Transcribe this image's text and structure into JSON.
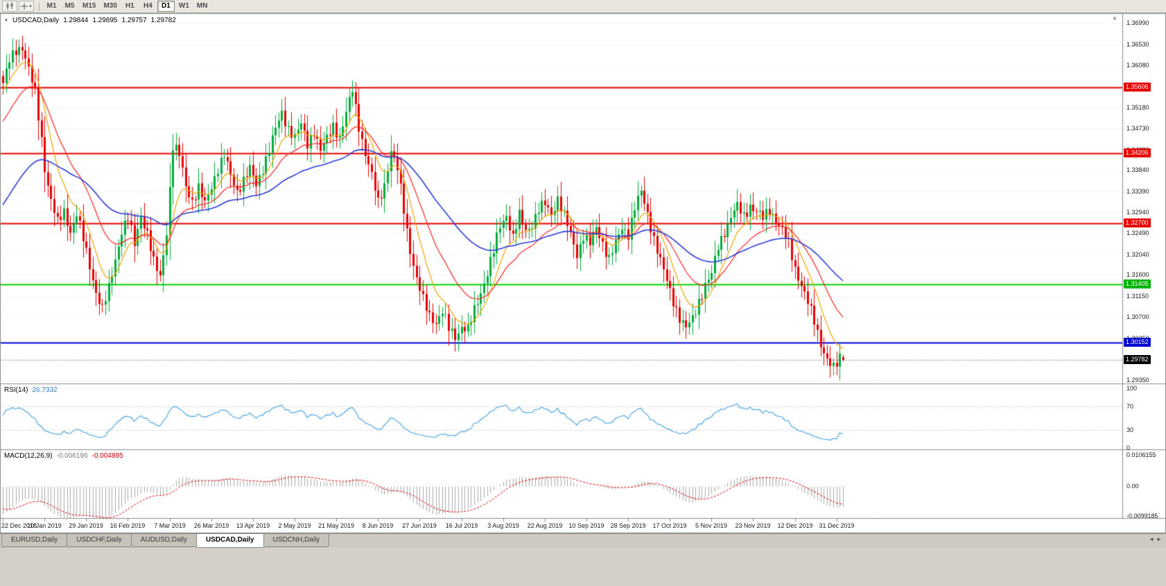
{
  "toolbar": {
    "timeframes": [
      "M1",
      "M5",
      "M15",
      "M30",
      "H1",
      "H4",
      "D1",
      "W1",
      "MN"
    ],
    "active_timeframe": "D1"
  },
  "chart": {
    "title": {
      "symbol_period": "USDCAD,Daily",
      "open": "1.29844",
      "high": "1.29895",
      "low": "1.29757",
      "close": "1.29782"
    },
    "price_axis": {
      "ticks": [
        "1.36990",
        "1.36530",
        "1.36080",
        "1.35630",
        "1.35180",
        "1.34730",
        "1.34280",
        "1.33840",
        "1.33390",
        "1.32940",
        "1.32490",
        "1.32040",
        "1.31600",
        "1.31150",
        "1.30700",
        "1.30250",
        "1.29800",
        "1.29350"
      ]
    },
    "badges": [
      {
        "value": "1.35606",
        "bg": "#e60000",
        "fg": "#ffffff",
        "kind": "level"
      },
      {
        "value": "1.34206",
        "bg": "#e60000",
        "fg": "#ffffff",
        "kind": "level"
      },
      {
        "value": "1.32700",
        "bg": "#e60000",
        "fg": "#ffffff",
        "kind": "level"
      },
      {
        "value": "1.31405",
        "bg": "#00b400",
        "fg": "#ffffff",
        "kind": "level"
      },
      {
        "value": "1.30152",
        "bg": "#0000cc",
        "fg": "#ffffff",
        "kind": "level"
      },
      {
        "value": "1.29782",
        "bg": "#000000",
        "fg": "#ffffff",
        "kind": "current"
      }
    ]
  },
  "indicators": {
    "rsi": {
      "label": "RSI(14)",
      "value": "26.7332",
      "axis_ticks": [
        "100",
        "70",
        "30",
        "0"
      ],
      "guide_levels": [
        70,
        30
      ],
      "line_color": "#3f9fe0"
    },
    "macd": {
      "label": "MACD(12,26,9)",
      "value_main": "-0.006196",
      "value_signal": "-0.004895",
      "axis_ticks": [
        "0.0106155",
        "0.00",
        "-0.0099185"
      ],
      "histogram_color": "#a8a8a8",
      "signal_color": "#e00000"
    }
  },
  "date_axis": {
    "labels": [
      "22 Dec 2018",
      "10 Jan 2019",
      "29 Jan 2019",
      "16 Feb 2019",
      "7 Mar 2019",
      "26 Mar 2019",
      "13 Apr 2019",
      "2 May 2019",
      "21 May 2019",
      "8 Jun 2019",
      "27 Jun 2019",
      "16 Jul 2019",
      "3 Aug 2019",
      "22 Aug 2019",
      "10 Sep 2019",
      "28 Sep 2019",
      "17 Oct 2019",
      "5 Nov 2019",
      "23 Nov 2019",
      "12 Dec 2019",
      "31 Dec 2019"
    ],
    "first_index": 0,
    "index_step": 13
  },
  "tabs": {
    "items": [
      "EURUSD,Daily",
      "USDCHF,Daily",
      "AUDUSD,Daily",
      "USDCAD,Daily",
      "USDCNH,Daily"
    ],
    "active": "USDCAD,Daily"
  },
  "chart_data": {
    "type": "candlestick",
    "symbol": "USDCAD",
    "period": "Daily",
    "num_candles": 263,
    "last_candle": {
      "open": 1.29844,
      "high": 1.29895,
      "low": 1.29757,
      "close": 1.29782
    },
    "price_axis_range": {
      "top": 1.3715,
      "bottom": 1.2928
    },
    "horizontal_levels": [
      {
        "price": 1.35606,
        "color": "#e60000",
        "width": 2
      },
      {
        "price": 1.34206,
        "color": "#e60000",
        "width": 2
      },
      {
        "price": 1.327,
        "color": "#e60000",
        "width": 2
      },
      {
        "price": 1.31405,
        "color": "#00d400",
        "width": 2
      },
      {
        "price": 1.30152,
        "color": "#0000dd",
        "width": 2
      }
    ],
    "moving_averages": [
      {
        "period": 9,
        "color": "#f2a500",
        "seed": 1.355
      },
      {
        "period": 21,
        "color": "#ff2121",
        "seed": 1.348
      },
      {
        "period": 55,
        "color": "#2b3cd8",
        "seed": 1.33
      }
    ],
    "candle_up_color": "#00ad3c",
    "candle_down_color": "#e60000",
    "rsi_range": [
      0,
      100
    ],
    "macd_range": {
      "top": 0.0106155,
      "bottom": -0.0099185
    },
    "close_anchors": [
      [
        0,
        1.357
      ],
      [
        2,
        1.3615
      ],
      [
        4,
        1.364
      ],
      [
        6,
        1.365
      ],
      [
        8,
        1.36
      ],
      [
        10,
        1.3545
      ],
      [
        12,
        1.345
      ],
      [
        13,
        1.339
      ],
      [
        15,
        1.332
      ],
      [
        17,
        1.327
      ],
      [
        19,
        1.3295
      ],
      [
        21,
        1.3255
      ],
      [
        23,
        1.329
      ],
      [
        25,
        1.3235
      ],
      [
        27,
        1.318
      ],
      [
        29,
        1.3125
      ],
      [
        31,
        1.3085
      ],
      [
        33,
        1.313
      ],
      [
        35,
        1.3195
      ],
      [
        37,
        1.3255
      ],
      [
        39,
        1.328
      ],
      [
        41,
        1.3225
      ],
      [
        43,
        1.329
      ],
      [
        45,
        1.325
      ],
      [
        47,
        1.3185
      ],
      [
        49,
        1.3155
      ],
      [
        51,
        1.3255
      ],
      [
        53,
        1.3435
      ],
      [
        55,
        1.3415
      ],
      [
        57,
        1.335
      ],
      [
        59,
        1.332
      ],
      [
        61,
        1.3345
      ],
      [
        63,
        1.331
      ],
      [
        65,
        1.335
      ],
      [
        67,
        1.339
      ],
      [
        69,
        1.3415
      ],
      [
        71,
        1.337
      ],
      [
        73,
        1.334
      ],
      [
        75,
        1.3365
      ],
      [
        77,
        1.3385
      ],
      [
        79,
        1.335
      ],
      [
        81,
        1.339
      ],
      [
        83,
        1.343
      ],
      [
        85,
        1.347
      ],
      [
        87,
        1.3505
      ],
      [
        89,
        1.3475
      ],
      [
        91,
        1.3455
      ],
      [
        93,
        1.348
      ],
      [
        95,
        1.344
      ],
      [
        97,
        1.347
      ],
      [
        99,
        1.3425
      ],
      [
        101,
        1.345
      ],
      [
        103,
        1.348
      ],
      [
        105,
        1.3455
      ],
      [
        107,
        1.3505
      ],
      [
        109,
        1.3555
      ],
      [
        111,
        1.348
      ],
      [
        113,
        1.342
      ],
      [
        115,
        1.337
      ],
      [
        117,
        1.3315
      ],
      [
        119,
        1.3355
      ],
      [
        121,
        1.3425
      ],
      [
        123,
        1.3385
      ],
      [
        125,
        1.33
      ],
      [
        127,
        1.3215
      ],
      [
        129,
        1.315
      ],
      [
        131,
        1.3105
      ],
      [
        133,
        1.3075
      ],
      [
        135,
        1.306
      ],
      [
        137,
        1.308
      ],
      [
        139,
        1.3045
      ],
      [
        141,
        1.303
      ],
      [
        143,
        1.305
      ],
      [
        145,
        1.304
      ],
      [
        147,
        1.3085
      ],
      [
        149,
        1.3125
      ],
      [
        151,
        1.3165
      ],
      [
        153,
        1.321
      ],
      [
        155,
        1.3265
      ],
      [
        157,
        1.329
      ],
      [
        159,
        1.324
      ],
      [
        161,
        1.3285
      ],
      [
        163,
        1.3255
      ],
      [
        165,
        1.327
      ],
      [
        167,
        1.33
      ],
      [
        169,
        1.331
      ],
      [
        171,
        1.329
      ],
      [
        173,
        1.3325
      ],
      [
        175,
        1.3285
      ],
      [
        177,
        1.3245
      ],
      [
        179,
        1.3205
      ],
      [
        181,
        1.3245
      ],
      [
        183,
        1.3225
      ],
      [
        185,
        1.326
      ],
      [
        187,
        1.323
      ],
      [
        189,
        1.3195
      ],
      [
        191,
        1.3225
      ],
      [
        193,
        1.326
      ],
      [
        195,
        1.325
      ],
      [
        197,
        1.3305
      ],
      [
        199,
        1.3335
      ],
      [
        201,
        1.329
      ],
      [
        203,
        1.324
      ],
      [
        205,
        1.319
      ],
      [
        207,
        1.3145
      ],
      [
        209,
        1.3105
      ],
      [
        211,
        1.307
      ],
      [
        213,
        1.3045
      ],
      [
        215,
        1.3065
      ],
      [
        217,
        1.3105
      ],
      [
        219,
        1.314
      ],
      [
        221,
        1.316
      ],
      [
        223,
        1.322
      ],
      [
        225,
        1.3255
      ],
      [
        227,
        1.3285
      ],
      [
        229,
        1.3305
      ],
      [
        231,
        1.3285
      ],
      [
        233,
        1.331
      ],
      [
        235,
        1.3295
      ],
      [
        237,
        1.328
      ],
      [
        239,
        1.33
      ],
      [
        241,
        1.328
      ],
      [
        243,
        1.3255
      ],
      [
        245,
        1.3225
      ],
      [
        247,
        1.3175
      ],
      [
        249,
        1.314
      ],
      [
        251,
        1.31
      ],
      [
        253,
        1.306
      ],
      [
        255,
        1.3015
      ],
      [
        257,
        1.298
      ],
      [
        259,
        1.2958
      ],
      [
        260,
        1.2968
      ],
      [
        261,
        1.2984
      ],
      [
        262,
        1.2978
      ]
    ]
  }
}
